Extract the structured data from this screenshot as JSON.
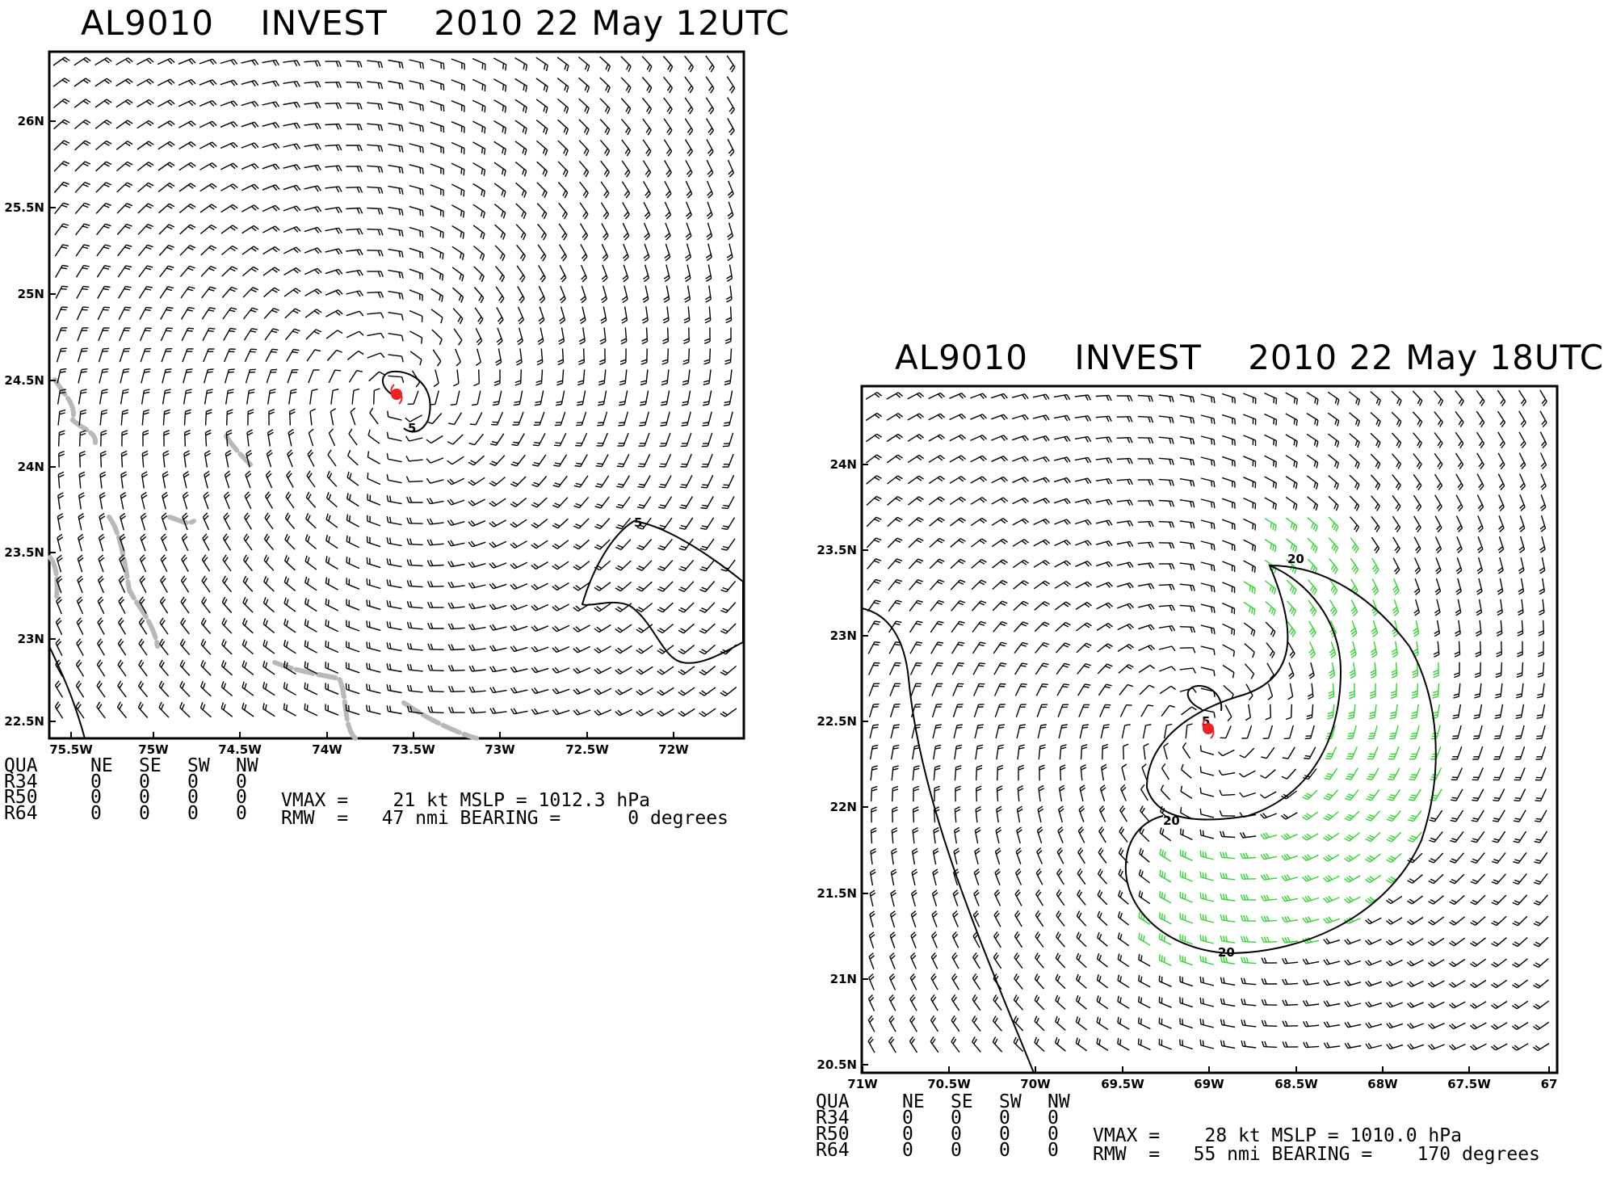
{
  "panels": [
    {
      "id": "p1",
      "title": "AL9010    INVEST    2010 22 May 12UTC",
      "lat_labels": [
        "26N",
        "25.5N",
        "25N",
        "24.5N",
        "24N",
        "23.5N",
        "23N",
        "22.5N"
      ],
      "lon_labels": [
        "75.5W",
        "75W",
        "74.5W",
        "74W",
        "73.5W",
        "73W",
        "72.5W",
        "72W"
      ],
      "contour_labels": [
        "5",
        "5"
      ],
      "table": {
        "header": [
          "QUA",
          "NE",
          "SE",
          "SW",
          "NW"
        ],
        "rows": [
          [
            "R34",
            "0",
            "0",
            "0",
            "0"
          ],
          [
            "R50",
            "0",
            "0",
            "0",
            "0"
          ],
          [
            "R64",
            "0",
            "0",
            "0",
            "0"
          ]
        ]
      },
      "line1": "VMAX =    21 kt MSLP = 1012.3 hPa",
      "line2": "RMW  =   47 nmi BEARING =      0 degrees",
      "vmax_kt": 21,
      "mslp_hpa": 1012.3,
      "rmw_nmi": 47,
      "bearing_deg": 0,
      "center": {
        "lon": -73.55,
        "lat": 24.4
      }
    },
    {
      "id": "p2",
      "title": "AL9010    INVEST    2010 22 May 18UTC",
      "lat_labels": [
        "24N",
        "23.5N",
        "23N",
        "22.5N",
        "22N",
        "21.5N",
        "21N",
        "20.5N"
      ],
      "lon_labels": [
        "71W",
        "70.5W",
        "70W",
        "69.5W",
        "69W",
        "68.5W",
        "68W",
        "67.5W",
        "67"
      ],
      "contour_labels": [
        "20",
        "20",
        "20",
        "5"
      ],
      "table": {
        "header": [
          "QUA",
          "NE",
          "SE",
          "SW",
          "NW"
        ],
        "rows": [
          [
            "R34",
            "0",
            "0",
            "0",
            "0"
          ],
          [
            "R50",
            "0",
            "0",
            "0",
            "0"
          ],
          [
            "R64",
            "0",
            "0",
            "0",
            "0"
          ]
        ]
      },
      "line1": "VMAX =    28 kt MSLP = 1010.0 hPa",
      "line2": "RMW  =   55 nmi BEARING =    170 degrees",
      "vmax_kt": 28,
      "mslp_hpa": 1010.0,
      "rmw_nmi": 55,
      "bearing_deg": 170,
      "center": {
        "lon": -69.0,
        "lat": 22.45
      }
    }
  ],
  "colors": {
    "barb": "#000000",
    "strong_barb": "#2fd62f",
    "storm_center": "#ee2222",
    "coast": "#b8b8b8",
    "contour": "#000000"
  }
}
